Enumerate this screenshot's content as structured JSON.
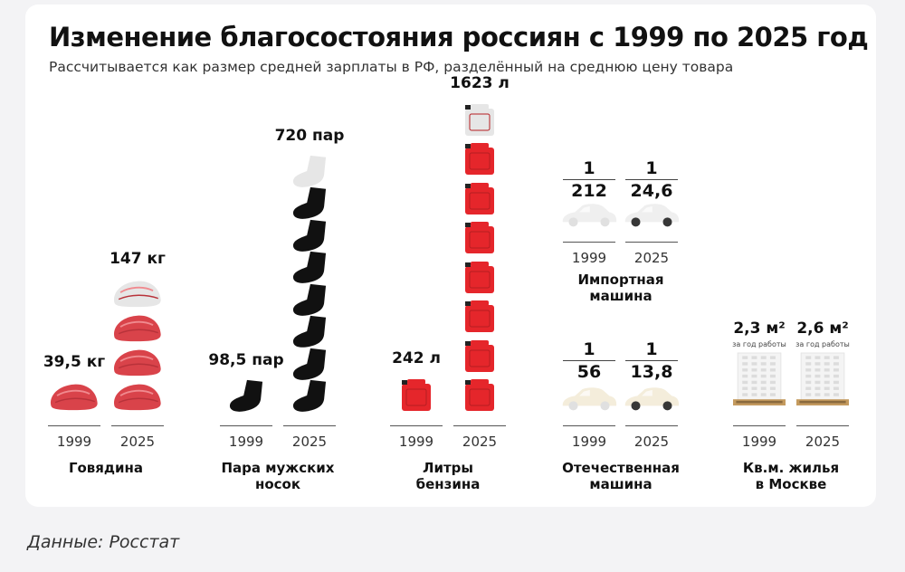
{
  "title": "Изменение благосостояния россиян с 1999 по 2025 год",
  "subtitle": "Рассчитывается как размер средней зарплаты в РФ, разделённый на среднюю цену товара",
  "source": "Данные: Росстат",
  "colors": {
    "beef": "#d9434a",
    "socks": "#111111",
    "canister": "#e5262b",
    "faded": "#e6e6e6"
  },
  "chart_data": {
    "type": "pictogram",
    "title": "Изменение благосостояния россиян с 1999 по 2025 год",
    "categories": [
      "1999",
      "2025"
    ],
    "items": [
      {
        "label": "Говядина",
        "icon": "beef-icon",
        "unit": "кг",
        "values": [
          39.5,
          147
        ],
        "value_labels": [
          "39,5 кг",
          "147 кг"
        ]
      },
      {
        "label": "Пара мужских носок",
        "icon": "sock-icon",
        "unit": "пар",
        "values": [
          98.5,
          720
        ],
        "value_labels": [
          "98,5 пар",
          "720 пар"
        ]
      },
      {
        "label": "Литры бензина",
        "icon": "canister-icon",
        "unit": "л",
        "values": [
          242,
          1623
        ],
        "value_labels": [
          "242 л",
          "1623 л"
        ]
      },
      {
        "label": "Импортная машина",
        "icon": "car-icon",
        "values": [
          0.004717,
          0.04065
        ],
        "fraction_num": [
          "1",
          "1"
        ],
        "fraction_den": [
          "212",
          "24,6"
        ]
      },
      {
        "label": "Отечественная машина",
        "icon": "car-icon",
        "values": [
          0.01786,
          0.07246
        ],
        "fraction_num": [
          "1",
          "1"
        ],
        "fraction_den": [
          "56",
          "13,8"
        ]
      },
      {
        "label": "Кв.м. жилья в Москве",
        "icon": "building-icon",
        "unit": "м²",
        "values": [
          2.3,
          2.6
        ],
        "value_labels": [
          "2,3 м²",
          "2,6 м²"
        ],
        "note": "за год работы"
      }
    ]
  }
}
